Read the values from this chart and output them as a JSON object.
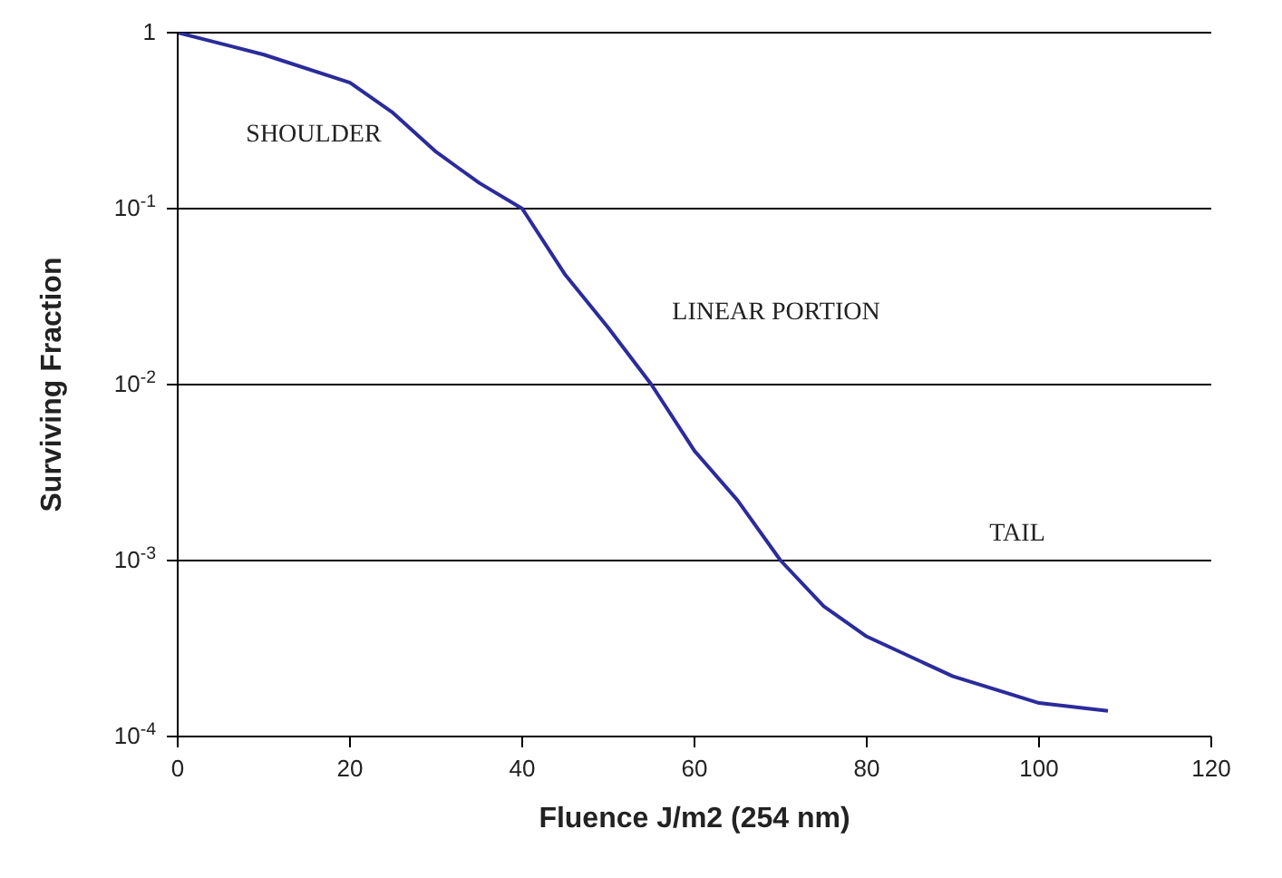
{
  "chart_data": {
    "type": "line",
    "xlabel": "Fluence J/m2 (254 nm)",
    "ylabel": "Surviving Fraction",
    "x": [
      0,
      10,
      20,
      25,
      30,
      35,
      40,
      45,
      50,
      55,
      60,
      65,
      70,
      75,
      80,
      90,
      100,
      108
    ],
    "series": [
      {
        "color": "#2b2b9c",
        "values": [
          1,
          0.75,
          0.52,
          0.35,
          0.21,
          0.14,
          0.1,
          0.042,
          0.021,
          0.01,
          0.0042,
          0.0022,
          0.001,
          0.00055,
          0.00037,
          0.00022,
          0.000155,
          0.00014
        ]
      }
    ],
    "xlim": [
      0,
      120
    ],
    "xticks": [
      0,
      20,
      40,
      60,
      80,
      100,
      120
    ],
    "ylim": [
      0.0001,
      1
    ],
    "yticks": [
      {
        "value": 0.0001,
        "label": "10$^{-4}$"
      },
      {
        "value": 0.001,
        "label": "10$^{-3}$"
      },
      {
        "value": 0.01,
        "label": "10$^{-2}$"
      },
      {
        "value": 0.1,
        "label": "10$^{-1}$"
      },
      1
    ],
    "log": "y",
    "grid": "y",
    "marker": "none",
    "line_style": "solid",
    "annotations": [
      "SHOULDER",
      "LINEAR PORTION",
      "TAIL"
    ]
  }
}
